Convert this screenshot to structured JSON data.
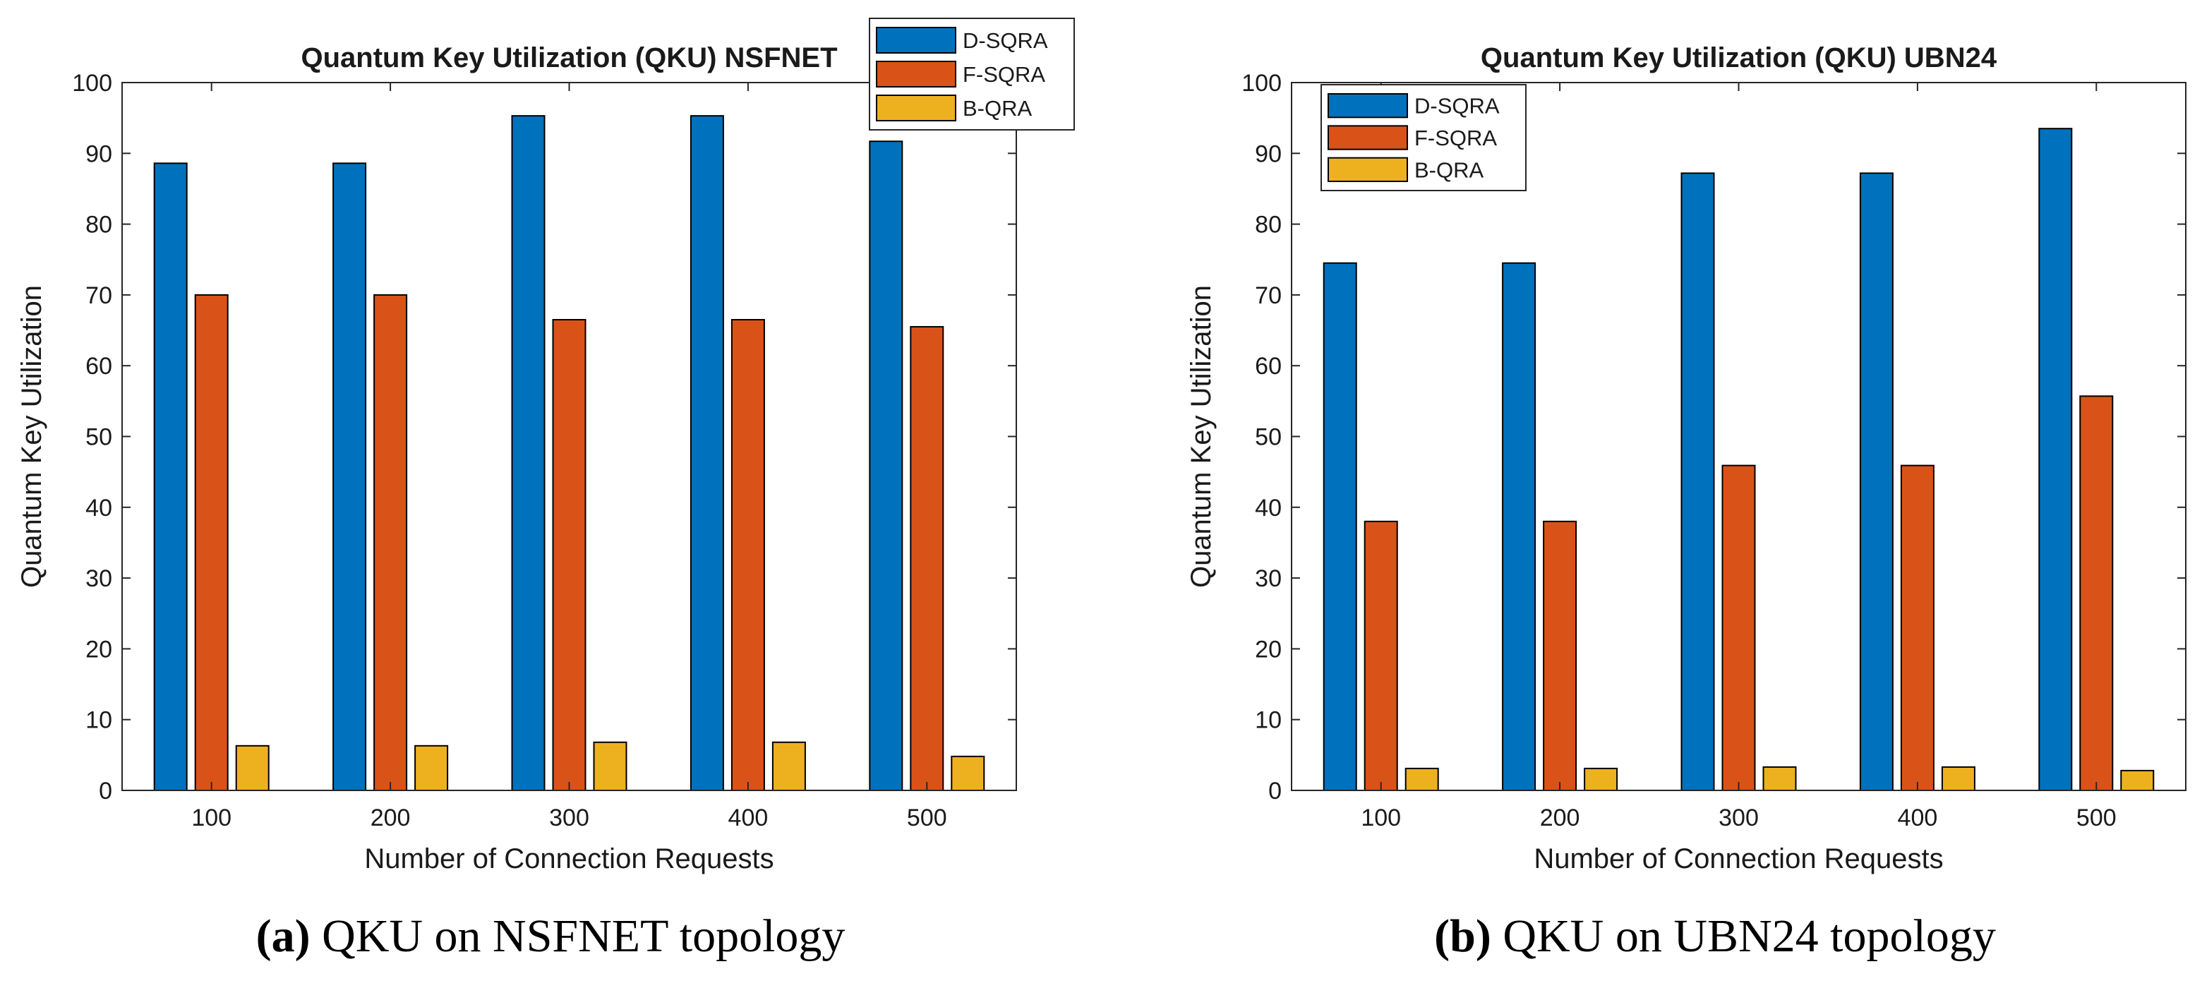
{
  "colors": {
    "D-SQRA": "#0072BD",
    "F-SQRA": "#D95319",
    "B-QRA": "#EDB120"
  },
  "chart_data": [
    {
      "type": "bar",
      "title": "Quantum Key Utilization (QKU) NSFNET",
      "xlabel": "Number of Connection Requests",
      "ylabel": "Quantum Key Utilization",
      "categories": [
        "100",
        "200",
        "300",
        "400",
        "500"
      ],
      "ylim": [
        0,
        100
      ],
      "yticks": [
        0,
        10,
        20,
        30,
        40,
        50,
        60,
        70,
        80,
        90,
        100
      ],
      "grid": false,
      "legend_position": "top-right",
      "series": [
        {
          "name": "D-SQRA",
          "values": [
            88.6,
            88.6,
            95.3,
            95.3,
            91.7
          ]
        },
        {
          "name": "F-SQRA",
          "values": [
            70.0,
            70.0,
            66.5,
            66.5,
            65.5
          ]
        },
        {
          "name": "B-QRA",
          "values": [
            6.3,
            6.3,
            6.8,
            6.8,
            4.8
          ]
        }
      ],
      "caption_label": "(a)",
      "caption_text": "QKU on NSFNET topology"
    },
    {
      "type": "bar",
      "title": "Quantum Key Utilization (QKU) UBN24",
      "xlabel": "Number of Connection Requests",
      "ylabel": "Quantum Key Utilization",
      "categories": [
        "100",
        "200",
        "300",
        "400",
        "500"
      ],
      "ylim": [
        0,
        100
      ],
      "yticks": [
        0,
        10,
        20,
        30,
        40,
        50,
        60,
        70,
        80,
        90,
        100
      ],
      "grid": false,
      "legend_position": "top-left",
      "series": [
        {
          "name": "D-SQRA",
          "values": [
            74.5,
            74.5,
            87.2,
            87.2,
            93.5
          ]
        },
        {
          "name": "F-SQRA",
          "values": [
            38.0,
            38.0,
            45.9,
            45.9,
            55.7
          ]
        },
        {
          "name": "B-QRA",
          "values": [
            3.1,
            3.1,
            3.3,
            3.3,
            2.8
          ]
        }
      ],
      "caption_label": "(b)",
      "caption_text": "QKU on UBN24 topology"
    }
  ]
}
